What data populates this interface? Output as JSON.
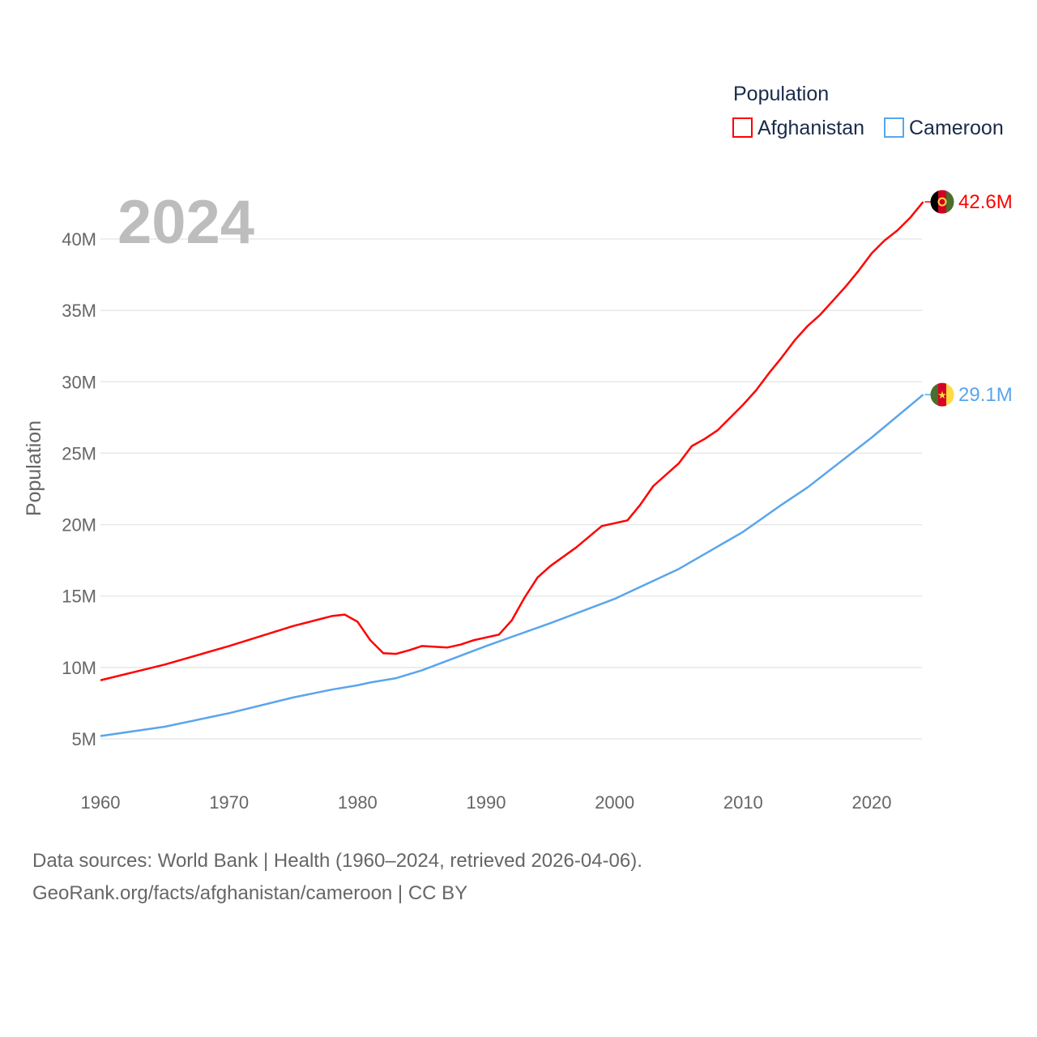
{
  "chart_data": {
    "type": "line",
    "year_label": "2024",
    "ylabel": "Population",
    "xlim": [
      1960,
      2024
    ],
    "ylim": [
      3,
      44
    ],
    "x_ticks": [
      "1960",
      "1970",
      "1980",
      "1990",
      "2000",
      "2010",
      "2020"
    ],
    "y_ticks": [
      "5M",
      "10M",
      "15M",
      "20M",
      "25M",
      "30M",
      "35M",
      "40M"
    ],
    "grid": true,
    "legend": {
      "title": "Population",
      "placement": "top-right"
    },
    "series": [
      {
        "name": "Afghanistan",
        "color": "#ff0000",
        "end_label": "42.6M",
        "flag": "afghanistan-flag",
        "points": [
          [
            1960,
            9.1
          ],
          [
            1965,
            10.2
          ],
          [
            1970,
            11.5
          ],
          [
            1975,
            12.9
          ],
          [
            1978,
            13.6
          ],
          [
            1979,
            13.7
          ],
          [
            1980,
            13.2
          ],
          [
            1981,
            11.9
          ],
          [
            1982,
            11.0
          ],
          [
            1983,
            10.95
          ],
          [
            1984,
            11.2
          ],
          [
            1985,
            11.5
          ],
          [
            1987,
            11.4
          ],
          [
            1988,
            11.6
          ],
          [
            1989,
            11.9
          ],
          [
            1991,
            12.3
          ],
          [
            1992,
            13.3
          ],
          [
            1993,
            14.9
          ],
          [
            1994,
            16.3
          ],
          [
            1995,
            17.1
          ],
          [
            1997,
            18.4
          ],
          [
            1999,
            19.9
          ],
          [
            2000,
            20.1
          ],
          [
            2001,
            20.3
          ],
          [
            2002,
            21.4
          ],
          [
            2003,
            22.7
          ],
          [
            2005,
            24.3
          ],
          [
            2006,
            25.5
          ],
          [
            2007,
            26.0
          ],
          [
            2008,
            26.6
          ],
          [
            2009,
            27.5
          ],
          [
            2010,
            28.4
          ],
          [
            2011,
            29.4
          ],
          [
            2012,
            30.6
          ],
          [
            2013,
            31.7
          ],
          [
            2014,
            32.9
          ],
          [
            2015,
            33.9
          ],
          [
            2016,
            34.7
          ],
          [
            2017,
            35.7
          ],
          [
            2018,
            36.7
          ],
          [
            2019,
            37.8
          ],
          [
            2020,
            39.0
          ],
          [
            2021,
            39.9
          ],
          [
            2022,
            40.6
          ],
          [
            2023,
            41.5
          ],
          [
            2024,
            42.6
          ]
        ]
      },
      {
        "name": "Cameroon",
        "color": "#5aa5ec",
        "end_label": "29.1M",
        "flag": "cameroon-flag",
        "points": [
          [
            1960,
            5.2
          ],
          [
            1965,
            5.85
          ],
          [
            1970,
            6.8
          ],
          [
            1975,
            7.9
          ],
          [
            1978,
            8.45
          ],
          [
            1980,
            8.75
          ],
          [
            1981,
            8.95
          ],
          [
            1983,
            9.25
          ],
          [
            1985,
            9.8
          ],
          [
            1990,
            11.5
          ],
          [
            1995,
            13.1
          ],
          [
            2000,
            14.8
          ],
          [
            2005,
            16.9
          ],
          [
            2010,
            19.5
          ],
          [
            2013,
            21.4
          ],
          [
            2015,
            22.6
          ],
          [
            2020,
            26.1
          ],
          [
            2024,
            29.1
          ]
        ]
      }
    ]
  },
  "footer": {
    "line1": "Data sources: World Bank | Health (1960–2024, retrieved 2026-04-06).",
    "line2": "GeoRank.org/facts/afghanistan/cameroon | CC BY"
  }
}
